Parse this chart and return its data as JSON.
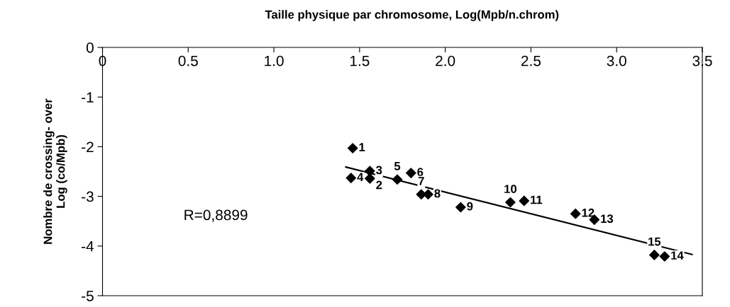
{
  "chart_data": {
    "type": "scatter",
    "title": "Taille physique par chromosome, Log(Mpb/n.chrom)",
    "ylabel": "Nombre de crossing- over\nLog (co/Mpb)",
    "xlim": [
      0,
      3.5
    ],
    "xticks": [
      0,
      {
        "value": 0.5,
        "label": "0.5"
      },
      {
        "value": 1.0,
        "label": "1.0"
      },
      {
        "value": 1.5,
        "label": "1.5"
      },
      {
        "value": 2.0,
        "label": "2.0"
      },
      {
        "value": 2.5,
        "label": "2.5"
      },
      {
        "value": 3.0,
        "label": "3.0"
      },
      {
        "value": 3.5,
        "label": "3.5"
      }
    ],
    "ylim": [
      -5,
      0
    ],
    "yticks": [
      0,
      -1,
      -2,
      -3,
      -4,
      -5
    ],
    "grid": false,
    "legend": false,
    "marker": "diamond",
    "series": [
      {
        "type": "scatter",
        "color": "#000000",
        "x": [
          1.46,
          1.56,
          1.56,
          1.45,
          1.72,
          1.8,
          1.86,
          1.9,
          2.09,
          2.38,
          2.46,
          2.76,
          2.87,
          3.28,
          3.22
        ],
        "values": [
          -2.03,
          -2.64,
          -2.49,
          -2.63,
          -2.66,
          -2.53,
          -2.96,
          -2.96,
          -3.22,
          -3.12,
          -3.09,
          -3.35,
          -3.47,
          -4.21,
          -4.18
        ]
      },
      {
        "type": "line",
        "marker": "none",
        "color": "#000000",
        "x": [
          1.42,
          3.44
        ],
        "values": [
          -2.41,
          -4.17
        ]
      }
    ],
    "annotations": [
      {
        "text": "1",
        "x": 1.46,
        "y": -2.03
      },
      {
        "text": "2",
        "x": 1.56,
        "y": -2.64
      },
      {
        "text": "3",
        "x": 1.56,
        "y": -2.49
      },
      {
        "text": "4",
        "x": 1.45,
        "y": -2.63
      },
      {
        "text": "5",
        "x": 1.72,
        "y": -2.66
      },
      {
        "text": "6",
        "x": 1.8,
        "y": -2.53
      },
      {
        "text": "7",
        "x": 1.86,
        "y": -2.96
      },
      {
        "text": "8",
        "x": 1.9,
        "y": -2.96
      },
      {
        "text": "9",
        "x": 2.09,
        "y": -3.22
      },
      {
        "text": "10",
        "x": 2.38,
        "y": -3.12
      },
      {
        "text": "11",
        "x": 2.46,
        "y": -3.09
      },
      {
        "text": "12",
        "x": 2.76,
        "y": -3.35
      },
      {
        "text": "13",
        "x": 2.87,
        "y": -3.47
      },
      {
        "text": "14",
        "x": 3.28,
        "y": -4.21
      },
      {
        "text": "15",
        "x": 3.22,
        "y": -4.18
      },
      "R=0,8899"
    ]
  }
}
